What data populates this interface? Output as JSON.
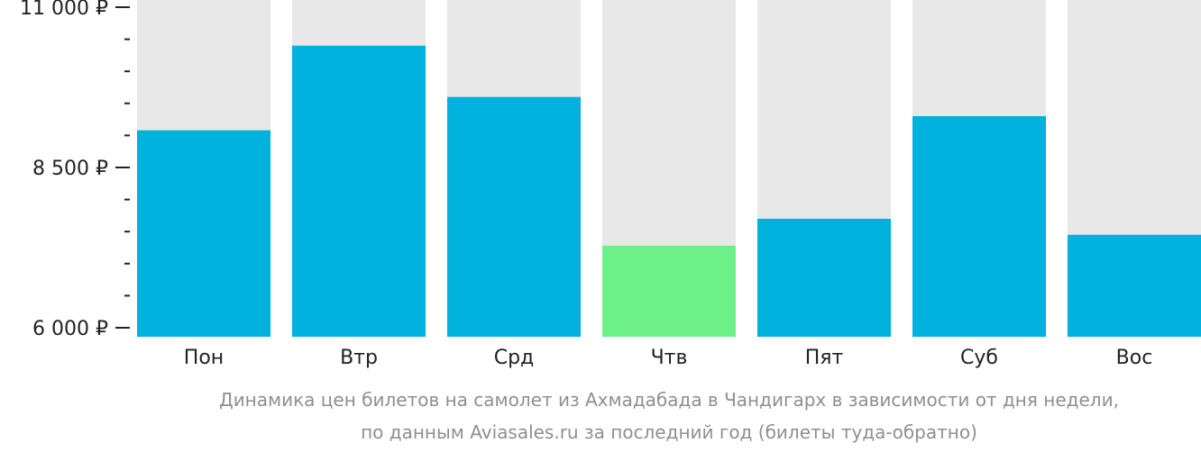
{
  "chart_data": {
    "type": "bar",
    "categories": [
      "Пон",
      "Втр",
      "Срд",
      "Чтв",
      "Пят",
      "Суб",
      "Вос"
    ],
    "values": [
      9080,
      10400,
      9600,
      7280,
      7700,
      9300,
      7450
    ],
    "highlight_index": 3,
    "ylim": [
      6000,
      11000
    ],
    "yticks": [
      {
        "value": 11000,
        "label": "11 000 ₽"
      },
      {
        "value": 8500,
        "label": "8 500 ₽"
      },
      {
        "value": 6000,
        "label": "6 000 ₽"
      }
    ],
    "minor_tick_step": 500,
    "colors": {
      "bar": "#00b0dd",
      "highlight": "#6cf087",
      "background_column": "#e8e8e8",
      "axis": "#222222"
    }
  },
  "caption": {
    "line1": "Динамика цен билетов на самолет из Ахмадабада в Чандигарх в зависимости от дня недели,",
    "line2": "по данным Aviasales.ru за последний год (билеты туда-обратно)"
  }
}
